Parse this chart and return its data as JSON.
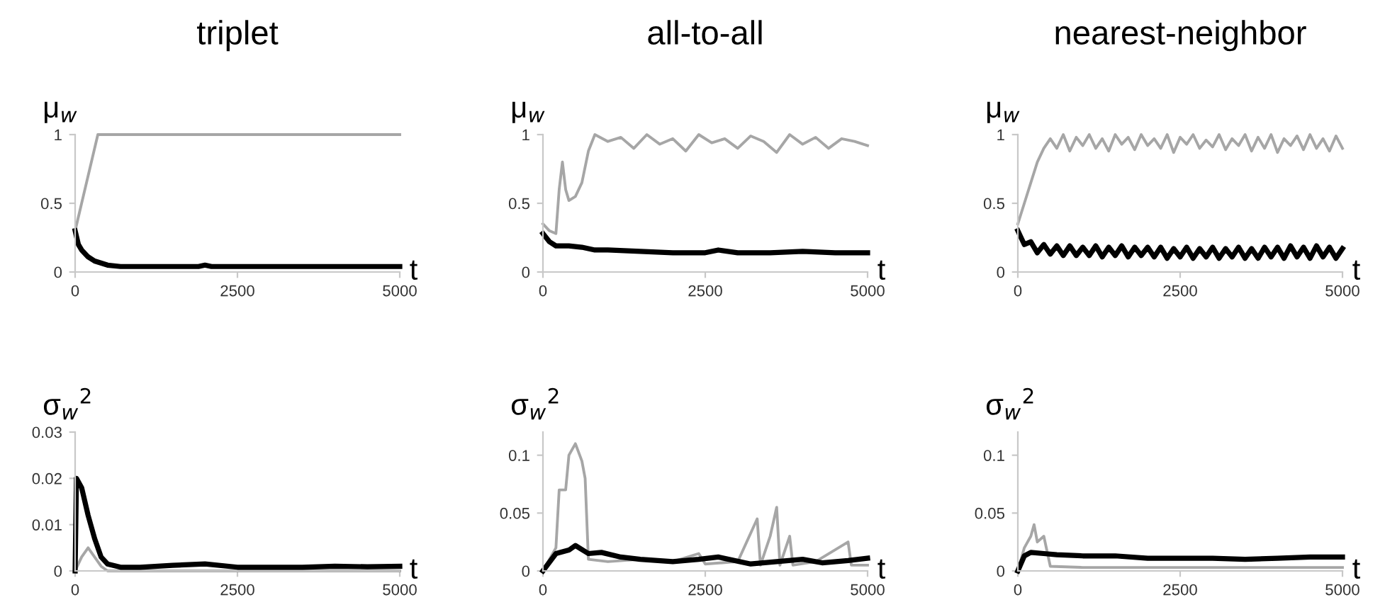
{
  "chart_data": [
    {
      "type": "line",
      "title": "triplet",
      "ylabel": "μ$_{w}$",
      "xlabel": "t",
      "xlim": [
        0,
        5000
      ],
      "xticks": [
        0,
        2500,
        5000
      ],
      "ylim": [
        0,
        1
      ],
      "yticks": [
        0,
        0.5,
        1
      ],
      "series": [
        {
          "color": "#a6a6a6",
          "x": [
            0,
            100,
            200,
            350,
            500,
            1000,
            2000,
            3000,
            4000,
            5000
          ],
          "values": [
            0.3,
            0.5,
            0.7,
            1.0,
            1.0,
            1.0,
            1.0,
            1.0,
            1.0,
            1.0
          ]
        },
        {
          "color": "#000000",
          "x": [
            0,
            50,
            100,
            200,
            300,
            500,
            700,
            1000,
            1900,
            2000,
            2100,
            3000,
            4000,
            5000
          ],
          "values": [
            0.3,
            0.2,
            0.16,
            0.11,
            0.08,
            0.05,
            0.04,
            0.04,
            0.04,
            0.05,
            0.04,
            0.04,
            0.04,
            0.04
          ]
        }
      ]
    },
    {
      "type": "line",
      "title": "all-to-all",
      "ylabel": "μ$_{w}$",
      "xlabel": "t",
      "xlim": [
        0,
        5000
      ],
      "xticks": [
        0,
        2500,
        5000
      ],
      "ylim": [
        0,
        1
      ],
      "yticks": [
        0,
        0.5,
        1
      ],
      "series": [
        {
          "color": "#a6a6a6",
          "x": [
            0,
            100,
            200,
            250,
            300,
            350,
            400,
            500,
            600,
            700,
            800,
            1000,
            1200,
            1400,
            1600,
            1800,
            2000,
            2200,
            2400,
            2600,
            2800,
            3000,
            3200,
            3400,
            3600,
            3800,
            4000,
            4200,
            4400,
            4600,
            4800,
            5000
          ],
          "values": [
            0.35,
            0.3,
            0.28,
            0.6,
            0.8,
            0.6,
            0.52,
            0.55,
            0.65,
            0.88,
            1.0,
            0.95,
            0.98,
            0.9,
            1.0,
            0.93,
            0.97,
            0.88,
            1.0,
            0.94,
            0.97,
            0.9,
            0.99,
            0.95,
            0.87,
            1.0,
            0.93,
            0.98,
            0.9,
            0.97,
            0.95,
            0.92
          ]
        },
        {
          "color": "#000000",
          "x": [
            0,
            100,
            200,
            400,
            600,
            800,
            1000,
            1500,
            2000,
            2500,
            2700,
            3000,
            3500,
            4000,
            4500,
            5000
          ],
          "values": [
            0.28,
            0.22,
            0.19,
            0.19,
            0.18,
            0.16,
            0.16,
            0.15,
            0.14,
            0.14,
            0.16,
            0.14,
            0.14,
            0.15,
            0.14,
            0.14
          ]
        }
      ]
    },
    {
      "type": "line",
      "title": "nearest-neighbor",
      "ylabel": "μ$_{w}$",
      "xlabel": "t",
      "xlim": [
        0,
        5000
      ],
      "xticks": [
        0,
        2500,
        5000
      ],
      "ylim": [
        0,
        1
      ],
      "yticks": [
        0,
        0.5,
        1
      ],
      "series": [
        {
          "color": "#a6a6a6",
          "x": [
            0,
            100,
            200,
            300,
            400,
            500,
            600,
            700,
            800,
            900,
            1000,
            1100,
            1200,
            1300,
            1400,
            1500,
            1600,
            1700,
            1800,
            1900,
            2000,
            2100,
            2200,
            2300,
            2400,
            2500,
            2600,
            2700,
            2800,
            2900,
            3000,
            3100,
            3200,
            3300,
            3400,
            3500,
            3600,
            3700,
            3800,
            3900,
            4000,
            4100,
            4200,
            4300,
            4400,
            4500,
            4600,
            4700,
            4800,
            4900,
            5000
          ],
          "values": [
            0.35,
            0.5,
            0.65,
            0.8,
            0.9,
            0.97,
            0.9,
            1.0,
            0.88,
            0.98,
            0.92,
            1.0,
            0.9,
            0.97,
            0.88,
            1.0,
            0.93,
            0.98,
            0.89,
            1.0,
            0.92,
            0.97,
            0.9,
            1.0,
            0.87,
            0.98,
            0.93,
            1.0,
            0.9,
            0.96,
            0.91,
            1.0,
            0.89,
            0.97,
            0.92,
            1.0,
            0.88,
            0.98,
            0.9,
            1.0,
            0.87,
            0.97,
            0.92,
            0.99,
            0.89,
            1.0,
            0.9,
            0.97,
            0.88,
            0.99,
            0.9
          ]
        },
        {
          "color": "#000000",
          "x": [
            0,
            100,
            200,
            300,
            400,
            500,
            600,
            700,
            800,
            900,
            1000,
            1100,
            1200,
            1300,
            1400,
            1500,
            1600,
            1700,
            1800,
            1900,
            2000,
            2100,
            2200,
            2300,
            2400,
            2500,
            2600,
            2700,
            2800,
            2900,
            3000,
            3100,
            3200,
            3300,
            3400,
            3500,
            3600,
            3700,
            3800,
            3900,
            4000,
            4100,
            4200,
            4300,
            4400,
            4500,
            4600,
            4700,
            4800,
            4900,
            5000
          ],
          "values": [
            0.3,
            0.2,
            0.22,
            0.14,
            0.2,
            0.13,
            0.19,
            0.12,
            0.19,
            0.12,
            0.18,
            0.12,
            0.19,
            0.11,
            0.18,
            0.12,
            0.19,
            0.11,
            0.18,
            0.12,
            0.18,
            0.11,
            0.18,
            0.1,
            0.17,
            0.11,
            0.18,
            0.1,
            0.17,
            0.11,
            0.18,
            0.1,
            0.17,
            0.11,
            0.18,
            0.1,
            0.17,
            0.1,
            0.18,
            0.11,
            0.18,
            0.1,
            0.19,
            0.11,
            0.18,
            0.1,
            0.19,
            0.11,
            0.18,
            0.1,
            0.17
          ]
        }
      ]
    },
    {
      "type": "line",
      "ylabel": "σ$_{w}$$^{2}$",
      "xlabel": "t",
      "xlim": [
        0,
        5000
      ],
      "xticks": [
        0,
        2500,
        5000
      ],
      "ylim": [
        0,
        0.03
      ],
      "yticks": [
        0,
        0.01,
        0.02,
        0.03
      ],
      "series": [
        {
          "color": "#a6a6a6",
          "x": [
            0,
            100,
            200,
            300,
            400,
            500,
            1000,
            2000,
            3000,
            4000,
            5000
          ],
          "values": [
            0,
            0.003,
            0.005,
            0.003,
            0.001,
            0,
            0,
            0,
            0,
            0,
            0
          ]
        },
        {
          "color": "#000000",
          "x": [
            0,
            20,
            100,
            200,
            300,
            400,
            500,
            700,
            1000,
            1500,
            2000,
            2500,
            3000,
            3500,
            4000,
            4500,
            5000
          ],
          "values": [
            0,
            0.02,
            0.018,
            0.012,
            0.007,
            0.003,
            0.0015,
            0.0008,
            0.0008,
            0.0012,
            0.0015,
            0.0008,
            0.0008,
            0.0008,
            0.001,
            0.0009,
            0.001
          ]
        }
      ]
    },
    {
      "type": "line",
      "ylabel": "σ$_{w}$$^{2}$",
      "xlabel": "t",
      "xlim": [
        0,
        5000
      ],
      "xticks": [
        0,
        2500,
        5000
      ],
      "ylim": [
        0,
        0.12
      ],
      "yticks": [
        0,
        0.05,
        0.1
      ],
      "series": [
        {
          "color": "#a6a6a6",
          "x": [
            0,
            200,
            250,
            350,
            400,
            500,
            600,
            650,
            700,
            1000,
            1500,
            2000,
            2400,
            2500,
            3000,
            3300,
            3350,
            3500,
            3600,
            3650,
            3800,
            3850,
            4200,
            4700,
            4750,
            5000
          ],
          "values": [
            0,
            0.02,
            0.07,
            0.07,
            0.1,
            0.11,
            0.095,
            0.08,
            0.01,
            0.008,
            0.01,
            0.008,
            0.015,
            0.006,
            0.008,
            0.045,
            0.005,
            0.03,
            0.055,
            0.005,
            0.03,
            0.005,
            0.008,
            0.025,
            0.005,
            0.005
          ]
        },
        {
          "color": "#000000",
          "x": [
            0,
            200,
            400,
            500,
            700,
            900,
            1200,
            1500,
            2000,
            2400,
            2700,
            3200,
            3600,
            4000,
            4300,
            4700,
            5000
          ],
          "values": [
            0,
            0.015,
            0.018,
            0.022,
            0.015,
            0.016,
            0.012,
            0.01,
            0.008,
            0.01,
            0.012,
            0.006,
            0.008,
            0.01,
            0.007,
            0.009,
            0.011
          ]
        }
      ]
    },
    {
      "type": "line",
      "ylabel": "σ$_{w}$$^{2}$",
      "xlabel": "t",
      "xlim": [
        0,
        5000
      ],
      "xticks": [
        0,
        2500,
        5000
      ],
      "ylim": [
        0,
        0.12
      ],
      "yticks": [
        0,
        0.05,
        0.1
      ],
      "series": [
        {
          "color": "#a6a6a6",
          "x": [
            0,
            100,
            200,
            250,
            300,
            400,
            500,
            1000,
            2000,
            3000,
            4000,
            5000
          ],
          "values": [
            0,
            0.02,
            0.03,
            0.04,
            0.025,
            0.03,
            0.004,
            0.003,
            0.003,
            0.003,
            0.003,
            0.003
          ]
        },
        {
          "color": "#000000",
          "x": [
            0,
            100,
            200,
            400,
            600,
            1000,
            1500,
            2000,
            2500,
            3000,
            3500,
            4000,
            4500,
            5000
          ],
          "values": [
            0,
            0.013,
            0.016,
            0.015,
            0.014,
            0.013,
            0.013,
            0.011,
            0.011,
            0.011,
            0.01,
            0.011,
            0.012,
            0.012
          ]
        }
      ]
    }
  ]
}
